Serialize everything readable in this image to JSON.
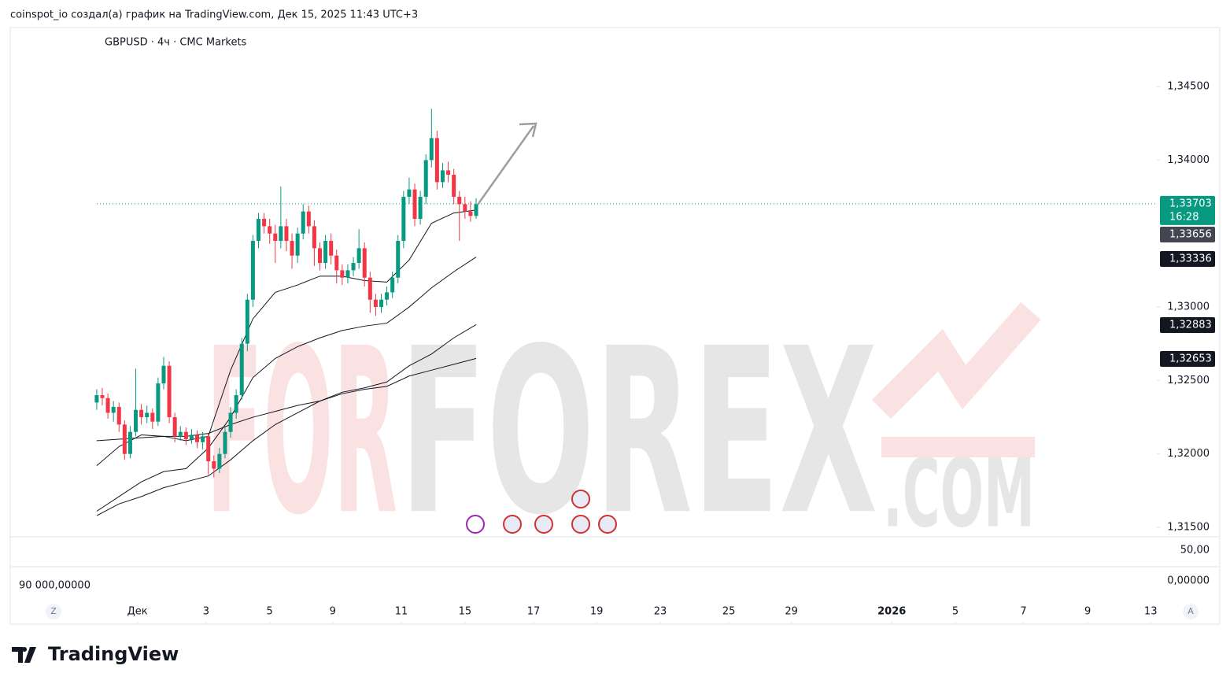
{
  "header": "coinspot_io создал(а) график на TradingView.com, Дек 15, 2025 11:43 UTC+3",
  "footer": "TradingView",
  "chart_data": {
    "type": "candlestick",
    "title": "GBPUSD · 4ч · CMC Markets",
    "open": [
      1.3235,
      1.324,
      1.3238,
      1.3228,
      1.3232,
      1.322,
      1.32,
      1.3215,
      1.323,
      1.3225,
      1.3228,
      1.3222,
      1.3248,
      1.326,
      1.3225,
      1.3212,
      1.3215,
      1.321,
      1.3213,
      1.3208,
      1.3212,
      1.3195,
      1.319,
      1.32,
      1.3215,
      1.3228,
      1.324,
      1.3275,
      1.3305,
      1.3345,
      1.336,
      1.3355,
      1.335,
      1.3345,
      1.3355,
      1.3345,
      1.3335,
      1.335,
      1.3365,
      1.3355,
      1.334,
      1.333,
      1.3345,
      1.3335,
      1.3325,
      1.332,
      1.3325,
      1.333,
      1.334,
      1.332,
      1.3305,
      1.33,
      1.3305,
      1.331,
      1.332,
      1.3345,
      1.3375,
      1.338,
      1.336,
      1.3375,
      1.34,
      1.3415,
      1.3385,
      1.3393,
      1.339,
      1.3375,
      1.337,
      1.3365,
      1.3362
    ],
    "high": [
      1.3244,
      1.3245,
      1.3241,
      1.3236,
      1.3235,
      1.3223,
      1.3219,
      1.3258,
      1.3234,
      1.3233,
      1.3231,
      1.3252,
      1.3266,
      1.3263,
      1.3228,
      1.3219,
      1.3218,
      1.3217,
      1.3216,
      1.3215,
      1.3214,
      1.3199,
      1.3204,
      1.3219,
      1.3232,
      1.3244,
      1.3279,
      1.3309,
      1.3349,
      1.3364,
      1.3364,
      1.336,
      1.3356,
      1.3382,
      1.336,
      1.335,
      1.3354,
      1.337,
      1.3369,
      1.3359,
      1.3344,
      1.3349,
      1.335,
      1.3339,
      1.3329,
      1.3329,
      1.3334,
      1.3353,
      1.3344,
      1.3324,
      1.3309,
      1.3309,
      1.3314,
      1.3324,
      1.3349,
      1.3379,
      1.3388,
      1.3384,
      1.3379,
      1.3404,
      1.3435,
      1.342,
      1.3398,
      1.3399,
      1.3394,
      1.3379,
      1.3375,
      1.3372,
      1.3374
    ],
    "low": [
      1.323,
      1.3233,
      1.3224,
      1.3222,
      1.3215,
      1.3196,
      1.3197,
      1.3212,
      1.322,
      1.3221,
      1.3217,
      1.3219,
      1.3244,
      1.3221,
      1.3208,
      1.3209,
      1.3206,
      1.3207,
      1.3204,
      1.3203,
      1.3186,
      1.3184,
      1.3187,
      1.3197,
      1.3211,
      1.3224,
      1.3237,
      1.327,
      1.33,
      1.334,
      1.335,
      1.3343,
      1.333,
      1.334,
      1.3338,
      1.3326,
      1.333,
      1.3346,
      1.335,
      1.3328,
      1.3325,
      1.3326,
      1.3329,
      1.3316,
      1.3315,
      1.3316,
      1.3321,
      1.3326,
      1.3314,
      1.3296,
      1.3294,
      1.3296,
      1.3301,
      1.3306,
      1.3316,
      1.334,
      1.337,
      1.3355,
      1.3356,
      1.337,
      1.3395,
      1.338,
      1.3381,
      1.3385,
      1.337,
      1.3345,
      1.336,
      1.3358,
      1.336
    ],
    "close": [
      1.324,
      1.3238,
      1.3228,
      1.3232,
      1.322,
      1.32,
      1.3215,
      1.323,
      1.3225,
      1.3228,
      1.3222,
      1.3248,
      1.326,
      1.3225,
      1.3212,
      1.3215,
      1.321,
      1.3213,
      1.3208,
      1.3212,
      1.3195,
      1.319,
      1.32,
      1.3215,
      1.3228,
      1.324,
      1.3275,
      1.3305,
      1.3345,
      1.336,
      1.3355,
      1.335,
      1.3345,
      1.3355,
      1.3345,
      1.3335,
      1.335,
      1.3365,
      1.3355,
      1.334,
      1.333,
      1.3345,
      1.3335,
      1.3325,
      1.332,
      1.3325,
      1.333,
      1.334,
      1.332,
      1.3305,
      1.33,
      1.3305,
      1.331,
      1.332,
      1.3345,
      1.3375,
      1.338,
      1.336,
      1.3375,
      1.34,
      1.3415,
      1.3385,
      1.3393,
      1.339,
      1.3375,
      1.337,
      1.3365,
      1.3362,
      1.337
    ],
    "up_color": "#089981",
    "down_color": "#f23645",
    "lines": [
      {
        "color": "#131722",
        "x": [
          0,
          4,
          8,
          12,
          16,
          20,
          24,
          28,
          32,
          36,
          40,
          44,
          48,
          52,
          56,
          60,
          64,
          68
        ],
        "values": [
          1.3192,
          1.3205,
          1.3213,
          1.3212,
          1.3209,
          1.3212,
          1.3257,
          1.3292,
          1.331,
          1.3315,
          1.3321,
          1.3321,
          1.3318,
          1.3317,
          1.3332,
          1.3357,
          1.3364,
          1.3366
        ]
      },
      {
        "color": "#131722",
        "x": [
          0,
          4,
          8,
          12,
          16,
          20,
          24,
          28,
          32,
          36,
          40,
          44,
          48,
          52,
          56,
          60,
          64,
          68
        ],
        "values": [
          1.3161,
          1.3171,
          1.3181,
          1.3188,
          1.319,
          1.3204,
          1.3225,
          1.3252,
          1.3265,
          1.3273,
          1.3279,
          1.3284,
          1.3287,
          1.3289,
          1.33,
          1.3313,
          1.3324,
          1.3334
        ]
      },
      {
        "color": "#131722",
        "x": [
          0,
          4,
          8,
          12,
          16,
          20,
          24,
          28,
          32,
          36,
          40,
          44,
          48,
          52,
          56,
          60,
          64,
          68
        ],
        "values": [
          1.3158,
          1.3166,
          1.3171,
          1.3177,
          1.3181,
          1.3185,
          1.3196,
          1.3209,
          1.322,
          1.3228,
          1.3236,
          1.3242,
          1.3245,
          1.3249,
          1.326,
          1.3268,
          1.3279,
          1.3288
        ]
      },
      {
        "color": "#131722",
        "x": [
          0,
          4,
          8,
          12,
          16,
          20,
          24,
          28,
          32,
          36,
          40,
          44,
          48,
          52,
          56,
          60,
          64,
          68
        ],
        "values": [
          1.3209,
          1.321,
          1.3211,
          1.3212,
          1.3212,
          1.3214,
          1.322,
          1.3225,
          1.3229,
          1.3233,
          1.3236,
          1.3241,
          1.3244,
          1.3246,
          1.3253,
          1.3257,
          1.3261,
          1.3265
        ]
      }
    ],
    "last_price": {
      "value": 1.33703,
      "label": "1,33703"
    },
    "countdown": "16:28",
    "price_labels": [
      "1,33656",
      "1,33336",
      "1,32883",
      "1,32653"
    ],
    "ylim": [
      1.31436,
      1.34902
    ],
    "yticks": [
      {
        "value": 1.345,
        "label": "1,34500"
      },
      {
        "value": 1.34,
        "label": "1,34000"
      },
      {
        "value": 1.33,
        "label": "1,33000"
      },
      {
        "value": 1.325,
        "label": "1,32500"
      },
      {
        "value": 1.32,
        "label": "1,32000"
      },
      {
        "value": 1.315,
        "label": "1,31500"
      }
    ],
    "xlim": [
      -15.5,
      190
    ],
    "xticks": [
      {
        "value": 7.3,
        "label": "Дек"
      },
      {
        "value": 19.6,
        "label": "3"
      },
      {
        "value": 31.0,
        "label": "5"
      },
      {
        "value": 42.3,
        "label": "9"
      },
      {
        "value": 54.6,
        "label": "11"
      },
      {
        "value": 66.0,
        "label": "15"
      },
      {
        "value": 78.3,
        "label": "17"
      },
      {
        "value": 89.6,
        "label": "19"
      },
      {
        "value": 101.0,
        "label": "23"
      },
      {
        "value": 113.3,
        "label": "25"
      },
      {
        "value": 124.5,
        "label": "29"
      },
      {
        "value": 142.5,
        "label": "2026"
      },
      {
        "value": 153.9,
        "label": "5"
      },
      {
        "value": 166.1,
        "label": "7"
      },
      {
        "value": 177.6,
        "label": "9"
      },
      {
        "value": 188.9,
        "label": "13"
      }
    ],
    "volume_labels": [
      "50,00",
      "0,00000",
      "90 000,00000"
    ],
    "axis_buttons": [
      "Z",
      "A"
    ],
    "watermark": [
      "FOR",
      "FOREX",
      ".COM"
    ]
  }
}
